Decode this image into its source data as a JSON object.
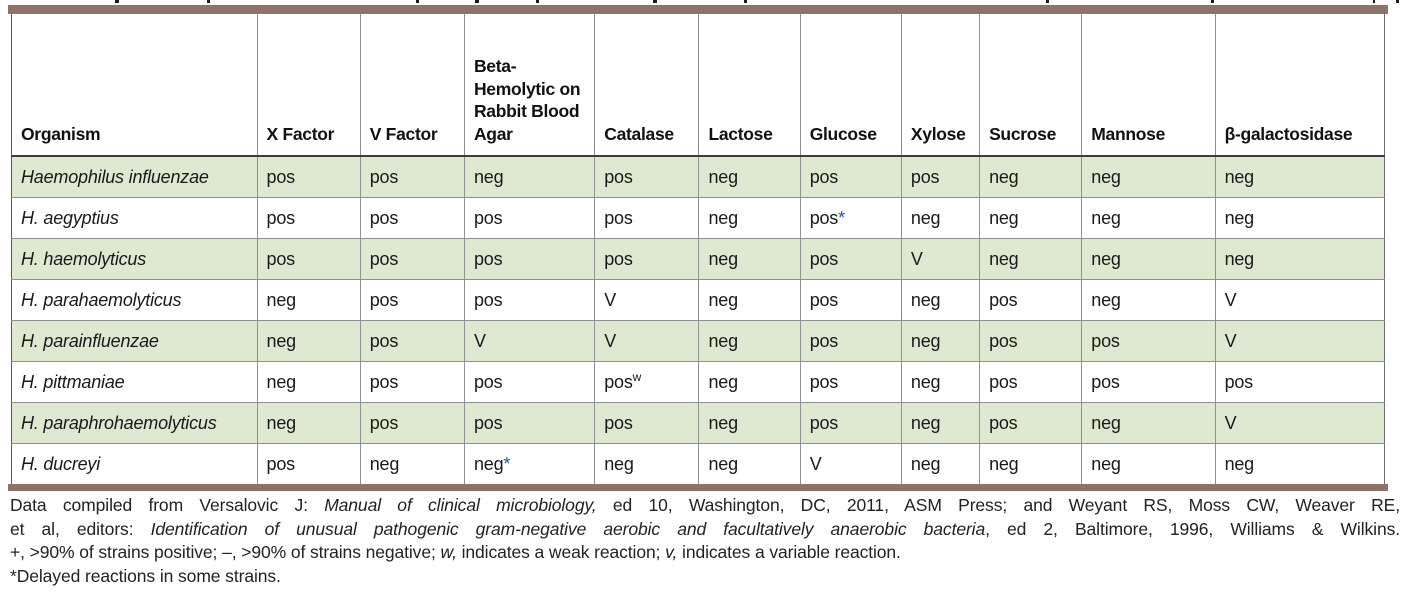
{
  "colors": {
    "shaded_row": "#dfe9d1",
    "border_bar": "#8c7468",
    "asterisk_accent": "#2b4d9f"
  },
  "table": {
    "columns": [
      "Organism",
      "X Factor",
      "V Factor",
      "Beta-Hemolytic on Rabbit Blood Agar",
      "Catalase",
      "Lactose",
      "Glucose",
      "Xylose",
      "Sucrose",
      "Mannose",
      "β-galactosidase"
    ],
    "rows": [
      {
        "organism": "Haemophilus influenzae",
        "shaded": true,
        "values": [
          "pos",
          "pos",
          "neg",
          "pos",
          "neg",
          "pos",
          "pos",
          "neg",
          "neg",
          "neg"
        ]
      },
      {
        "organism": "H. aegyptius",
        "shaded": false,
        "values": [
          "pos",
          "pos",
          "pos",
          "pos",
          "neg",
          "pos*",
          "neg",
          "neg",
          "neg",
          "neg"
        ]
      },
      {
        "organism": "H. haemolyticus",
        "shaded": true,
        "values": [
          "pos",
          "pos",
          "pos",
          "pos",
          "neg",
          "pos",
          "V",
          "neg",
          "neg",
          "neg"
        ]
      },
      {
        "organism": "H. parahaemolyticus",
        "shaded": false,
        "values": [
          "neg",
          "pos",
          "pos",
          "V",
          "neg",
          "pos",
          "neg",
          "pos",
          "neg",
          "V"
        ]
      },
      {
        "organism": "H. parainfluenzae",
        "shaded": true,
        "values": [
          "neg",
          "pos",
          "V",
          "V",
          "neg",
          "pos",
          "neg",
          "pos",
          "pos",
          "V"
        ]
      },
      {
        "organism": "H. pittmaniae",
        "shaded": false,
        "values": [
          "neg",
          "pos",
          "pos",
          "pos^w",
          "neg",
          "pos",
          "neg",
          "pos",
          "pos",
          "pos"
        ]
      },
      {
        "organism": "H. paraphrohaemolyticus",
        "shaded": true,
        "values": [
          "neg",
          "pos",
          "pos",
          "pos",
          "neg",
          "pos",
          "neg",
          "pos",
          "neg",
          "V"
        ]
      },
      {
        "organism": "H. ducreyi",
        "shaded": false,
        "values": [
          "pos",
          "neg",
          "neg*",
          "neg",
          "neg",
          "V",
          "neg",
          "neg",
          "neg",
          "neg"
        ]
      }
    ]
  },
  "footnotes": {
    "source_line1": [
      {
        "text": "Data compiled from Versalovic J: ",
        "italic": false
      },
      {
        "text": "Manual of clinical microbiology,",
        "italic": true
      },
      {
        "text": " ed 10, Washington, DC, 2011, ASM Press; and Weyant RS, Moss CW, Weaver RE,",
        "italic": false
      }
    ],
    "source_line2": [
      {
        "text": "et al, editors: ",
        "italic": false
      },
      {
        "text": "Identification of unusual pathogenic gram-negative aerobic and facultatively anaerobic bacteria",
        "italic": true
      },
      {
        "text": ", ed 2, Baltimore, 1996, Williams & Wilkins.",
        "italic": false
      }
    ],
    "key": [
      {
        "text": "+, >90% of strains positive; –, >90% of strains negative; ",
        "italic": false
      },
      {
        "text": "w,",
        "italic": true
      },
      {
        "text": " indicates a weak reaction; ",
        "italic": false
      },
      {
        "text": "v,",
        "italic": true
      },
      {
        "text": " indicates a variable reaction.",
        "italic": false
      }
    ],
    "asterisk_note": "*Delayed reactions in some strains."
  }
}
